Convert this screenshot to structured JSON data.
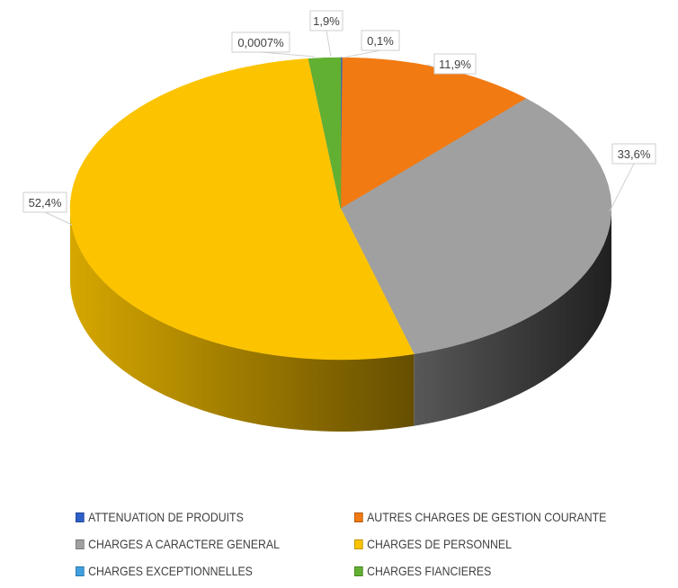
{
  "chart_data": {
    "type": "pie",
    "style": "3d",
    "title": "",
    "legend_position": "bottom",
    "slices": [
      {
        "name": "ATTENUATION DE PRODUITS",
        "value": 0.1,
        "label": "0,1%",
        "color": "#2E5FC8"
      },
      {
        "name": "AUTRES CHARGES DE GESTION COURANTE",
        "value": 11.9,
        "label": "11,9%",
        "color": "#F27A12"
      },
      {
        "name": "CHARGES A CARACTERE GENERAL",
        "value": 33.6,
        "label": "33,6%",
        "color": "#A0A0A0"
      },
      {
        "name": "CHARGES DE PERSONNEL",
        "value": 52.4,
        "label": "52,4%",
        "color": "#FCC400"
      },
      {
        "name": "CHARGES EXCEPTIONNELLES",
        "value": 0.0007,
        "label": "0,0007%",
        "color": "#3F9FE0"
      },
      {
        "name": "CHARGES FIANCIERES",
        "value": 1.9,
        "label": "1,9%",
        "color": "#62B032"
      }
    ]
  },
  "legend": {
    "order": [
      0,
      1,
      2,
      3,
      4,
      5
    ]
  }
}
